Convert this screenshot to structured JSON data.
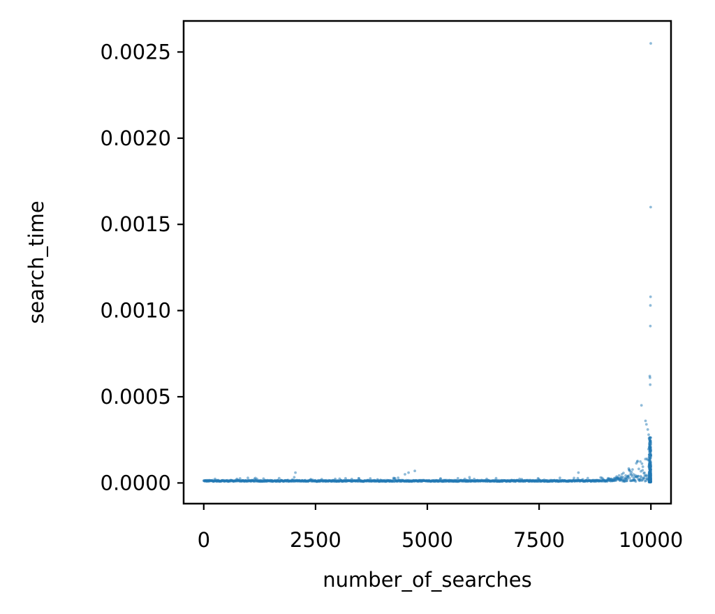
{
  "chart_data": {
    "type": "scatter",
    "title": "",
    "xlabel": "number_of_searches",
    "ylabel": "search_time",
    "xlim": [
      -450,
      10450
    ],
    "ylim": [
      -0.00012,
      0.00268
    ],
    "xticks": [
      0,
      2500,
      5000,
      7500,
      10000
    ],
    "xtick_labels": [
      "0",
      "2500",
      "5000",
      "7500",
      "10000"
    ],
    "yticks": [
      0.0,
      0.0005,
      0.001,
      0.0015,
      0.002,
      0.0025
    ],
    "ytick_labels": [
      "0.0000",
      "0.0005",
      "0.0010",
      "0.0015",
      "0.0020",
      "0.0025"
    ],
    "grid": false,
    "legend": "none",
    "marker_color": "#1f77b4",
    "marker_alpha": 0.5,
    "n_points": 10000,
    "baseline_value": 8e-06,
    "notable_points": [
      {
        "x": 2050,
        "y": 6e-05
      },
      {
        "x": 4500,
        "y": 5e-05
      },
      {
        "x": 4580,
        "y": 6e-05
      },
      {
        "x": 4720,
        "y": 7e-05
      },
      {
        "x": 8380,
        "y": 6e-05
      },
      {
        "x": 9790,
        "y": 0.00045
      },
      {
        "x": 9880,
        "y": 0.00036
      },
      {
        "x": 9900,
        "y": 0.00034
      },
      {
        "x": 9930,
        "y": 0.00031
      },
      {
        "x": 9950,
        "y": 0.00028
      },
      {
        "x": 9960,
        "y": 0.00026
      },
      {
        "x": 9975,
        "y": 0.00062
      },
      {
        "x": 9980,
        "y": 0.00061
      },
      {
        "x": 9985,
        "y": 0.00057
      },
      {
        "x": 9988,
        "y": 0.00091
      },
      {
        "x": 9990,
        "y": 0.00103
      },
      {
        "x": 9992,
        "y": 0.00108
      },
      {
        "x": 9995,
        "y": 0.0016
      },
      {
        "x": 9997,
        "y": 0.00255
      }
    ]
  }
}
